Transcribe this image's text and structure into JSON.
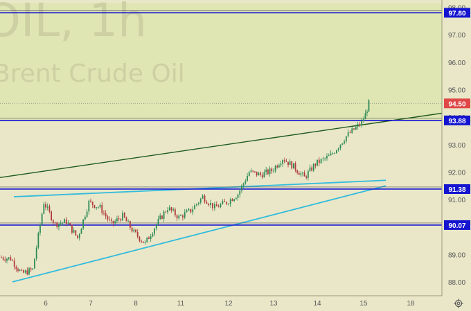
{
  "watermark": {
    "symbol": "OIL, 1h",
    "name": "Brent Crude Oil"
  },
  "colors": {
    "background": "#e9e7c8",
    "upper_zone": "#dfe6b3",
    "up_candle": "#2e8b57",
    "down_candle": "#b03a3a",
    "level_line": "#1515d0",
    "trend_dark": "#1f5a1f",
    "trend_light": "#33bbdd",
    "current_badge": "#e04848"
  },
  "chart_data": {
    "type": "candlestick",
    "instrument": "Brent Crude Oil",
    "timeframe": "1h",
    "x_tick_labels": [
      "6",
      "7",
      "8",
      "11",
      "12",
      "13",
      "14",
      "15",
      "18"
    ],
    "y_ticks": [
      88.0,
      89.0,
      90.0,
      91.0,
      92.0,
      93.0,
      94.0,
      95.0,
      96.0,
      97.0,
      98.0
    ],
    "y_tick_labels": [
      "88.00",
      "89.00",
      "90.00",
      "91.00",
      "92.00",
      "93.00",
      "94.00",
      "95.00",
      "96.00",
      "97.00",
      "98.00"
    ],
    "ylim": [
      87.3,
      98.1
    ],
    "current_price": 94.5,
    "current_price_label": "94.50",
    "horizontal_levels": [
      {
        "value": 97.8,
        "label": "97.80"
      },
      {
        "value": 93.88,
        "label": "93.88"
      },
      {
        "value": 91.38,
        "label": "91.38"
      },
      {
        "value": 90.07,
        "label": "90.07"
      }
    ],
    "trend_lines": [
      {
        "name": "dark-green-channel",
        "from": {
          "day": "5",
          "price": 91.8
        },
        "to": {
          "day": "15",
          "price": 94.15
        }
      },
      {
        "name": "upper-wedge",
        "from": {
          "day": "5",
          "price": 91.1
        },
        "to": {
          "day": "15",
          "price": 91.7
        }
      },
      {
        "name": "lower-wedge",
        "from": {
          "day": "5",
          "price": 88.0
        },
        "to": {
          "day": "15",
          "price": 91.5
        }
      }
    ],
    "price_path": [
      {
        "x": "5",
        "close": 88.9
      },
      {
        "x": "5",
        "close": 88.85
      },
      {
        "x": "5",
        "close": 88.3
      },
      {
        "x": "5",
        "close": 88.45
      },
      {
        "x": "6",
        "close": 90.9
      },
      {
        "x": "6",
        "close": 90.1
      },
      {
        "x": "6",
        "close": 90.2
      },
      {
        "x": "6",
        "close": 89.6
      },
      {
        "x": "7",
        "close": 90.9
      },
      {
        "x": "7",
        "close": 90.7
      },
      {
        "x": "7",
        "close": 90.1
      },
      {
        "x": "7",
        "close": 90.4
      },
      {
        "x": "8",
        "close": 89.8
      },
      {
        "x": "8",
        "close": 89.4
      },
      {
        "x": "8",
        "close": 90.1
      },
      {
        "x": "8",
        "close": 90.7
      },
      {
        "x": "11",
        "close": 90.35
      },
      {
        "x": "11",
        "close": 90.6
      },
      {
        "x": "11",
        "close": 91.1
      },
      {
        "x": "11",
        "close": 90.7
      },
      {
        "x": "12",
        "close": 90.9
      },
      {
        "x": "12",
        "close": 91.2
      },
      {
        "x": "12",
        "close": 92.0
      },
      {
        "x": "12",
        "close": 91.9
      },
      {
        "x": "13",
        "close": 92.05
      },
      {
        "x": "13",
        "close": 92.5
      },
      {
        "x": "13",
        "close": 92.2
      },
      {
        "x": "13",
        "close": 91.8
      },
      {
        "x": "14",
        "close": 92.3
      },
      {
        "x": "14",
        "close": 92.6
      },
      {
        "x": "14",
        "close": 93.3
      },
      {
        "x": "15",
        "close": 93.8
      },
      {
        "x": "15",
        "close": 94.1
      },
      {
        "x": "15",
        "close": 94.5
      }
    ],
    "upper_zone": {
      "from": 98.0,
      "to": 93.88
    },
    "grid": false,
    "legend": "none"
  }
}
